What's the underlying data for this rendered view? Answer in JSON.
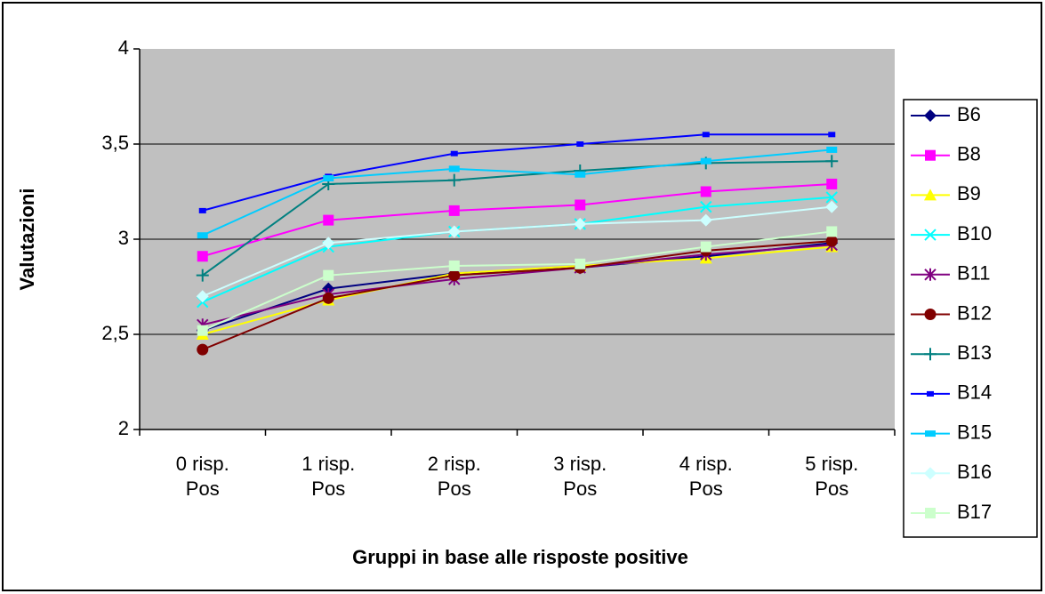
{
  "chart_data": {
    "type": "line",
    "y_label": "Valutazioni",
    "x_label": "Gruppi in base alle risposte positive",
    "categories": [
      "0 risp. Pos",
      "1 risp. Pos",
      "2 risp. Pos",
      "3 risp. Pos",
      "4 risp. Pos",
      "5 risp. Pos"
    ],
    "ylim": [
      2,
      4
    ],
    "yticks": [
      2,
      {
        "value": 2.5,
        "label": "2,5"
      },
      3,
      {
        "value": 3.5,
        "label": "3,5"
      },
      4
    ],
    "grid": true,
    "legend": "right",
    "series": [
      {
        "name": "B6",
        "color": "#000080",
        "marker": "diamond",
        "values": [
          2.52,
          2.74,
          2.82,
          2.85,
          2.91,
          2.98
        ]
      },
      {
        "name": "B8",
        "color": "#ff00ff",
        "marker": "square",
        "values": [
          2.91,
          3.1,
          3.15,
          3.18,
          3.25,
          3.29
        ]
      },
      {
        "name": "B9",
        "color": "#ffff00",
        "marker": "triangle",
        "values": [
          2.5,
          2.68,
          2.82,
          2.86,
          2.9,
          2.96
        ]
      },
      {
        "name": "B10",
        "color": "#00ffff",
        "marker": "x",
        "values": [
          2.67,
          2.96,
          3.04,
          3.08,
          3.17,
          3.22
        ]
      },
      {
        "name": "B11",
        "color": "#800080",
        "marker": "star",
        "values": [
          2.55,
          2.71,
          2.79,
          2.85,
          2.92,
          2.97
        ]
      },
      {
        "name": "B12",
        "color": "#800000",
        "marker": "circle",
        "values": [
          2.42,
          2.69,
          2.81,
          2.85,
          2.94,
          2.99
        ]
      },
      {
        "name": "B13",
        "color": "#008080",
        "marker": "plus",
        "values": [
          2.81,
          3.29,
          3.31,
          3.36,
          3.4,
          3.41
        ]
      },
      {
        "name": "B14",
        "color": "#0000ff",
        "marker": "dash",
        "values": [
          3.15,
          3.33,
          3.45,
          3.5,
          3.55,
          3.55
        ]
      },
      {
        "name": "B15",
        "color": "#00ccff",
        "marker": "wide",
        "values": [
          3.02,
          3.32,
          3.37,
          3.34,
          3.41,
          3.47
        ]
      },
      {
        "name": "B16",
        "color": "#ccffff",
        "marker": "diamond",
        "values": [
          2.7,
          2.98,
          3.04,
          3.08,
          3.1,
          3.17
        ]
      },
      {
        "name": "B17",
        "color": "#ccffcc",
        "marker": "square",
        "values": [
          2.52,
          2.81,
          2.86,
          2.87,
          2.96,
          3.04
        ]
      }
    ]
  }
}
